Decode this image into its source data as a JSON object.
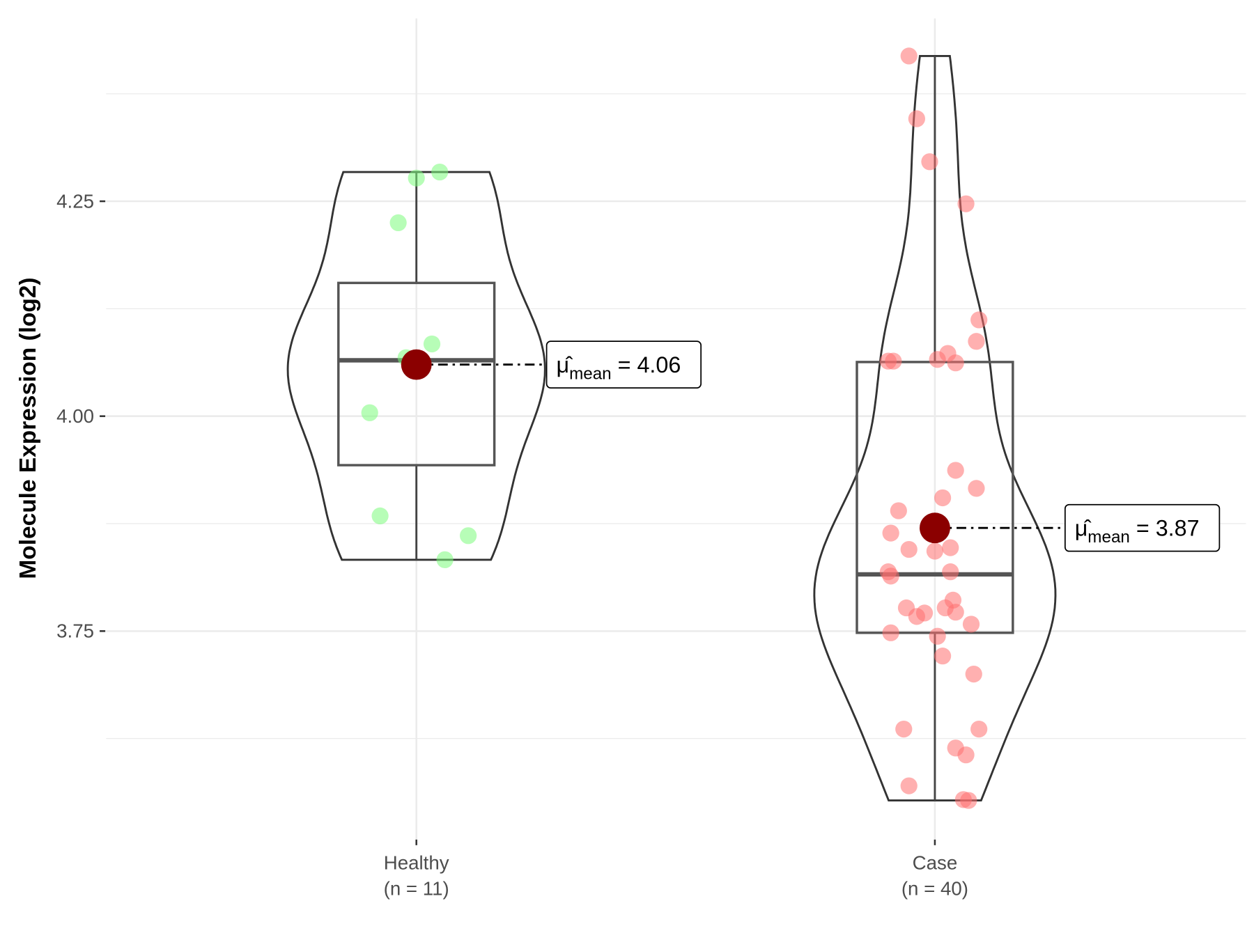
{
  "chart_data": {
    "type": "violin",
    "title": "",
    "xlabel": "",
    "ylabel": "Molecule Expression (log2)",
    "ylim": [
      3.5,
      4.46
    ],
    "yticks": [
      "3.75",
      "4.00",
      "4.25"
    ],
    "grid": true,
    "categories": [
      {
        "name": "Healthy",
        "n_label": "(n = 11)",
        "point_color": "#7CFC7C",
        "points": [
          4.284,
          4.277,
          4.225,
          4.084,
          4.068,
          4.062,
          4.058,
          4.004,
          3.884,
          3.861,
          3.833
        ],
        "jitter": [
          0.09,
          0.0,
          -0.07,
          0.06,
          -0.04,
          0.02,
          -0.02,
          -0.18,
          -0.14,
          0.2,
          0.11
        ],
        "box": {
          "min": 3.833,
          "q1": 3.943,
          "median": 4.065,
          "q3": 4.155,
          "max": 4.284
        },
        "mean": 4.06,
        "mean_label": "4.06"
      },
      {
        "name": "Case",
        "n_label": "(n = 40)",
        "point_color": "#FF7070",
        "points": [
          4.419,
          4.346,
          4.296,
          4.247,
          4.112,
          4.087,
          4.064,
          4.064,
          4.066,
          4.073,
          4.062,
          3.937,
          3.916,
          3.905,
          3.89,
          3.864,
          3.845,
          3.843,
          3.847,
          3.819,
          3.814,
          3.819,
          3.777,
          3.767,
          3.771,
          3.786,
          3.777,
          3.772,
          3.758,
          3.748,
          3.744,
          3.721,
          3.7,
          3.636,
          3.636,
          3.614,
          3.606,
          3.57,
          3.554,
          3.553
        ],
        "jitter": [
          -0.1,
          -0.07,
          -0.02,
          0.12,
          0.17,
          0.16,
          -0.18,
          -0.16,
          0.01,
          0.05,
          0.08,
          0.08,
          0.16,
          0.03,
          -0.14,
          -0.17,
          -0.1,
          0.0,
          0.06,
          -0.18,
          -0.17,
          0.06,
          -0.11,
          -0.07,
          -0.04,
          0.07,
          0.04,
          0.08,
          0.14,
          -0.17,
          0.01,
          0.03,
          0.15,
          -0.12,
          0.17,
          0.08,
          0.12,
          -0.1,
          0.11,
          0.13
        ],
        "box": {
          "min": 3.553,
          "q1": 3.748,
          "median": 3.816,
          "q3": 4.063,
          "max": 4.419
        },
        "mean": 3.87,
        "mean_label": "3.87"
      }
    ],
    "mean_color": "#8B0000",
    "mean_symbol": "μ̂",
    "mean_subscript": "mean",
    "mean_equals": "="
  }
}
